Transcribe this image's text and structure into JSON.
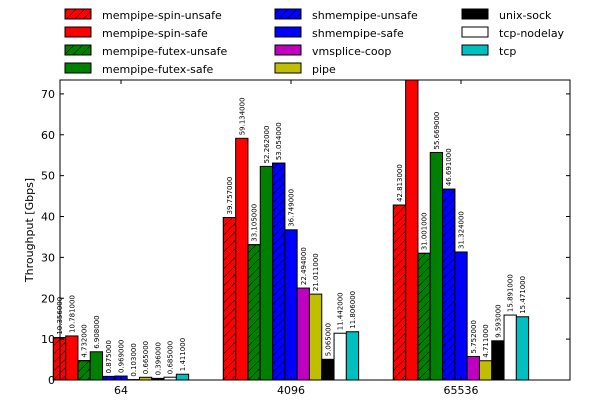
{
  "chart_data": {
    "type": "bar",
    "title": "",
    "xlabel": "",
    "ylabel": "Throughput [Gbps]",
    "ylim": [
      0,
      73.4
    ],
    "yticks": [
      0,
      10,
      20,
      30,
      40,
      50,
      60,
      70
    ],
    "grid": false,
    "legend_position": "top",
    "categories": [
      "64",
      "4096",
      "65536"
    ],
    "series": [
      {
        "name": "mempipe-spin-unsafe",
        "color": "#ff0000",
        "hatch": true,
        "values": [
          10.356,
          39.757,
          42.813
        ],
        "labels": [
          "10.356000",
          "39.757000",
          "42.813000"
        ]
      },
      {
        "name": "mempipe-spin-safe",
        "color": "#ff0000",
        "hatch": false,
        "values": [
          10.781,
          59.134,
          80.0
        ],
        "labels": [
          "10.781000",
          "59.134000",
          ""
        ]
      },
      {
        "name": "mempipe-futex-unsafe",
        "color": "#008000",
        "hatch": true,
        "values": [
          4.732,
          33.105,
          31.001
        ],
        "labels": [
          "4.732000",
          "33.105000",
          "31.001000"
        ]
      },
      {
        "name": "mempipe-futex-safe",
        "color": "#008000",
        "hatch": false,
        "values": [
          6.908,
          52.262,
          55.669
        ],
        "labels": [
          "6.908000",
          "52.262000",
          "55.669000"
        ]
      },
      {
        "name": "shmempipe-unsafe",
        "color": "#0000ff",
        "hatch": true,
        "values": [
          0.875,
          53.054,
          46.691
        ],
        "labels": [
          "0.875000",
          "53.054000",
          "46.691000"
        ]
      },
      {
        "name": "shmempipe-safe",
        "color": "#0000ff",
        "hatch": false,
        "values": [
          0.969,
          36.749,
          31.324
        ],
        "labels": [
          "0.969000",
          "36.749000",
          "31.324000"
        ]
      },
      {
        "name": "vmsplice-coop",
        "color": "#bf00bf",
        "hatch": false,
        "values": [
          0.103,
          22.494,
          5.752
        ],
        "labels": [
          "0.103000",
          "22.494000",
          "5.752000"
        ]
      },
      {
        "name": "pipe",
        "color": "#bfbf00",
        "hatch": false,
        "values": [
          0.665,
          21.011,
          4.711
        ],
        "labels": [
          "0.665000",
          "21.011000",
          "4.711000"
        ]
      },
      {
        "name": "unix-sock",
        "color": "#000000",
        "hatch": false,
        "values": [
          0.396,
          5.065,
          9.593
        ],
        "labels": [
          "0.396000",
          "5.065000",
          "9.593000"
        ]
      },
      {
        "name": "tcp-nodelay",
        "color": "#ffffff",
        "hatch": false,
        "values": [
          0.685,
          11.442,
          15.891
        ],
        "labels": [
          "0.685000",
          "11.442000",
          "15.891000"
        ]
      },
      {
        "name": "tcp",
        "color": "#00bfbf",
        "hatch": false,
        "values": [
          1.411,
          11.806,
          15.471
        ],
        "labels": [
          "1.411000",
          "11.806000",
          "15.471000"
        ]
      }
    ]
  }
}
